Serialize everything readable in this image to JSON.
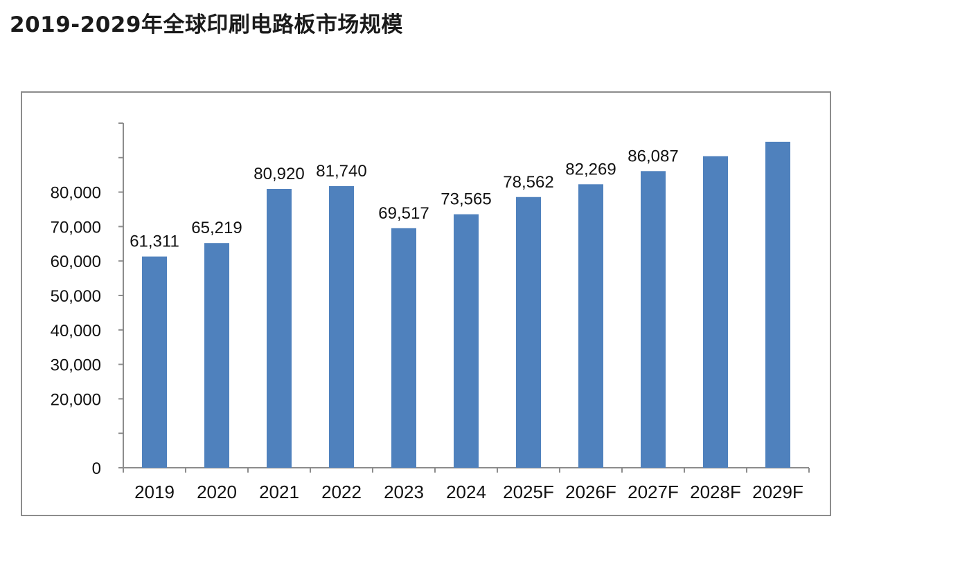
{
  "title": "2019-2029年全球印刷电路板市场规模",
  "chart_data": {
    "type": "bar",
    "title": "",
    "xlabel": "",
    "ylabel": "",
    "categories": [
      "2019",
      "2020",
      "2021",
      "2022",
      "2023",
      "2024",
      "2025F",
      "2026F",
      "2027F",
      "2028F",
      "2029F"
    ],
    "values": [
      61311,
      65219,
      80920,
      81740,
      69517,
      73565,
      78562,
      82269,
      86087,
      90400,
      94600
    ],
    "data_labels": [
      "61,311",
      "65,219",
      "80,920",
      "81,740",
      "69,517",
      "73,565",
      "78,562",
      "82,269",
      "86,087",
      "",
      ""
    ],
    "ylim": [
      0,
      100000
    ],
    "yticks": [
      {
        "value": 0,
        "label": "0"
      },
      {
        "value": 10000,
        "label": ""
      },
      {
        "value": 20000,
        "label": "20,000"
      },
      {
        "value": 30000,
        "label": "30,000"
      },
      {
        "value": 40000,
        "label": "40,000"
      },
      {
        "value": 50000,
        "label": "50,000"
      },
      {
        "value": 60000,
        "label": "60,000"
      },
      {
        "value": 70000,
        "label": "70,000"
      },
      {
        "value": 80000,
        "label": "80,000"
      },
      {
        "value": 90000,
        "label": ""
      },
      {
        "value": 100000,
        "label": ""
      }
    ],
    "bar_color": "#4f81bd",
    "axis_color": "#8c8c8c",
    "grid": false,
    "legend": "none"
  }
}
